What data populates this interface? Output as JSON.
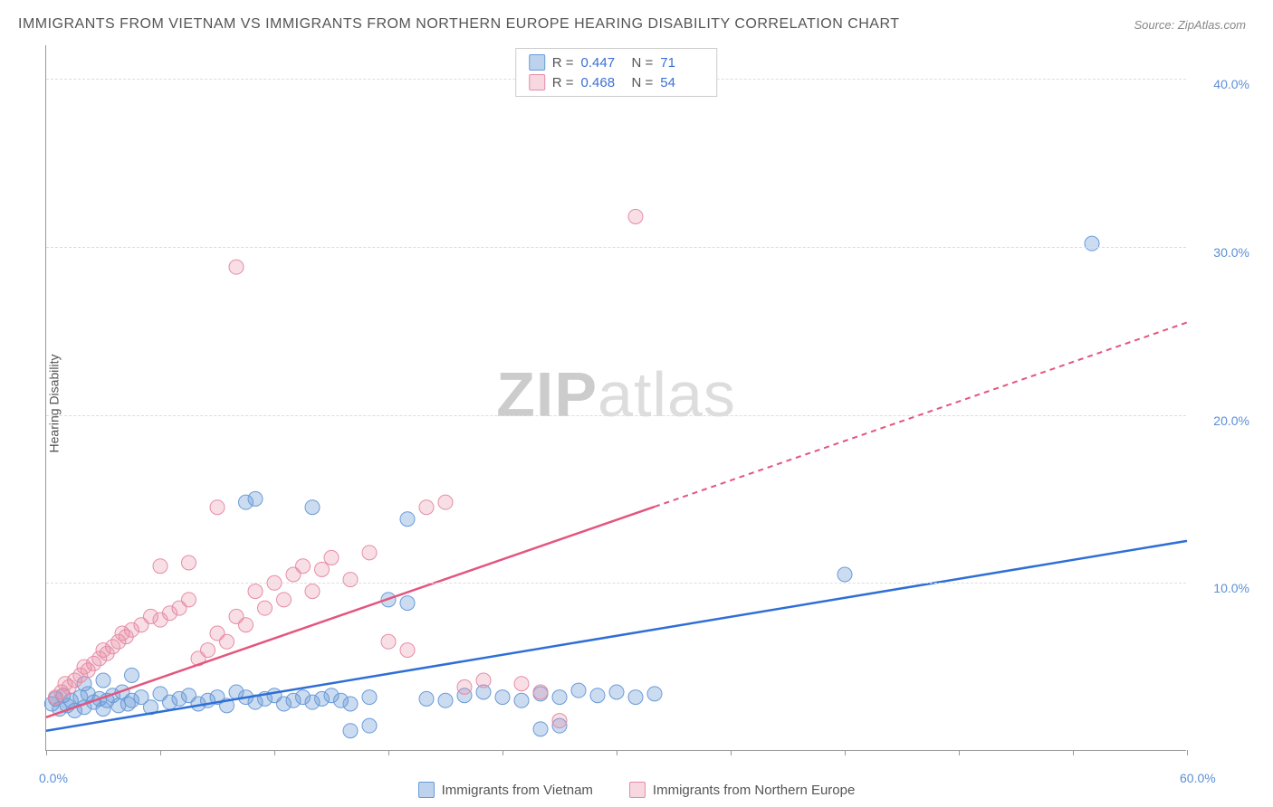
{
  "title": "IMMIGRANTS FROM VIETNAM VS IMMIGRANTS FROM NORTHERN EUROPE HEARING DISABILITY CORRELATION CHART",
  "source": "Source: ZipAtlas.com",
  "y_axis_label": "Hearing Disability",
  "watermark_a": "ZIP",
  "watermark_b": "atlas",
  "chart": {
    "type": "scatter",
    "x_range": [
      0,
      60
    ],
    "y_range": [
      0,
      42
    ],
    "y_ticks": [
      10,
      20,
      30,
      40
    ],
    "y_tick_labels": [
      "10.0%",
      "20.0%",
      "30.0%",
      "40.0%"
    ],
    "x_ticks": [
      0,
      6,
      12,
      18,
      24,
      30,
      36,
      42,
      48,
      54,
      60
    ],
    "x_tick_labels_show": {
      "0": "0.0%",
      "60": "60.0%"
    },
    "background_color": "#ffffff",
    "grid_color": "#dddddd",
    "series": [
      {
        "name": "Immigrants from Vietnam",
        "color_fill": "rgba(106,155,216,0.35)",
        "color_stroke": "#6a9bd8",
        "trend_color": "#2e6fd6",
        "trend_solid": true,
        "R": "0.447",
        "N": "71",
        "trend_y_at_x0": 1.2,
        "trend_y_at_x60": 12.5,
        "points": [
          [
            0.3,
            2.8
          ],
          [
            0.5,
            3.1
          ],
          [
            0.7,
            2.5
          ],
          [
            0.9,
            3.3
          ],
          [
            1.1,
            2.7
          ],
          [
            1.3,
            3.0
          ],
          [
            1.5,
            2.4
          ],
          [
            1.8,
            3.2
          ],
          [
            2.0,
            2.6
          ],
          [
            2.2,
            3.4
          ],
          [
            2.5,
            2.9
          ],
          [
            2.8,
            3.1
          ],
          [
            3.0,
            2.5
          ],
          [
            3.2,
            3.0
          ],
          [
            3.5,
            3.3
          ],
          [
            3.8,
            2.7
          ],
          [
            4.0,
            3.5
          ],
          [
            4.3,
            2.8
          ],
          [
            4.5,
            3.0
          ],
          [
            5.0,
            3.2
          ],
          [
            5.5,
            2.6
          ],
          [
            6.0,
            3.4
          ],
          [
            6.5,
            2.9
          ],
          [
            7.0,
            3.1
          ],
          [
            7.5,
            3.3
          ],
          [
            8.0,
            2.8
          ],
          [
            8.5,
            3.0
          ],
          [
            9.0,
            3.2
          ],
          [
            9.5,
            2.7
          ],
          [
            10.0,
            3.5
          ],
          [
            10.5,
            3.2
          ],
          [
            11.0,
            2.9
          ],
          [
            11.5,
            3.1
          ],
          [
            12.0,
            3.3
          ],
          [
            12.5,
            2.8
          ],
          [
            13.0,
            3.0
          ],
          [
            13.5,
            3.2
          ],
          [
            14.0,
            2.9
          ],
          [
            14.5,
            3.1
          ],
          [
            15.0,
            3.3
          ],
          [
            15.5,
            3.0
          ],
          [
            16.0,
            2.8
          ],
          [
            17.0,
            3.2
          ],
          [
            18.0,
            9.0
          ],
          [
            19.0,
            8.8
          ],
          [
            20.0,
            3.1
          ],
          [
            21.0,
            3.0
          ],
          [
            22.0,
            3.3
          ],
          [
            23.0,
            3.5
          ],
          [
            24.0,
            3.2
          ],
          [
            25.0,
            3.0
          ],
          [
            26.0,
            3.4
          ],
          [
            27.0,
            3.2
          ],
          [
            28.0,
            3.6
          ],
          [
            29.0,
            3.3
          ],
          [
            30.0,
            3.5
          ],
          [
            31.0,
            3.2
          ],
          [
            32.0,
            3.4
          ],
          [
            11.0,
            15.0
          ],
          [
            14.0,
            14.5
          ],
          [
            10.5,
            14.8
          ],
          [
            19.0,
            13.8
          ],
          [
            16.0,
            1.2
          ],
          [
            17.0,
            1.5
          ],
          [
            26.0,
            1.3
          ],
          [
            27.0,
            1.5
          ],
          [
            42.0,
            10.5
          ],
          [
            55.0,
            30.2
          ],
          [
            2.0,
            4.0
          ],
          [
            3.0,
            4.2
          ],
          [
            4.5,
            4.5
          ]
        ]
      },
      {
        "name": "Immigrants from Northern Europe",
        "color_fill": "rgba(231,140,165,0.28)",
        "color_stroke": "#e78ca5",
        "trend_color": "#e3567e",
        "trend_solid_until_x": 32,
        "R": "0.468",
        "N": "54",
        "trend_y_at_x0": 2.0,
        "trend_y_at_x60": 25.5,
        "points": [
          [
            0.5,
            3.2
          ],
          [
            0.8,
            3.5
          ],
          [
            1.0,
            4.0
          ],
          [
            1.2,
            3.8
          ],
          [
            1.5,
            4.2
          ],
          [
            1.8,
            4.5
          ],
          [
            2.0,
            5.0
          ],
          [
            2.2,
            4.8
          ],
          [
            2.5,
            5.2
          ],
          [
            2.8,
            5.5
          ],
          [
            3.0,
            6.0
          ],
          [
            3.2,
            5.8
          ],
          [
            3.5,
            6.2
          ],
          [
            3.8,
            6.5
          ],
          [
            4.0,
            7.0
          ],
          [
            4.2,
            6.8
          ],
          [
            4.5,
            7.2
          ],
          [
            5.0,
            7.5
          ],
          [
            5.5,
            8.0
          ],
          [
            6.0,
            7.8
          ],
          [
            6.5,
            8.2
          ],
          [
            7.0,
            8.5
          ],
          [
            7.5,
            9.0
          ],
          [
            8.0,
            5.5
          ],
          [
            8.5,
            6.0
          ],
          [
            9.0,
            7.0
          ],
          [
            9.5,
            6.5
          ],
          [
            10.0,
            8.0
          ],
          [
            10.5,
            7.5
          ],
          [
            11.0,
            9.5
          ],
          [
            11.5,
            8.5
          ],
          [
            12.0,
            10.0
          ],
          [
            12.5,
            9.0
          ],
          [
            13.0,
            10.5
          ],
          [
            13.5,
            11.0
          ],
          [
            14.0,
            9.5
          ],
          [
            14.5,
            10.8
          ],
          [
            15.0,
            11.5
          ],
          [
            16.0,
            10.2
          ],
          [
            17.0,
            11.8
          ],
          [
            18.0,
            6.5
          ],
          [
            19.0,
            6.0
          ],
          [
            20.0,
            14.5
          ],
          [
            21.0,
            14.8
          ],
          [
            9.0,
            14.5
          ],
          [
            10.0,
            28.8
          ],
          [
            25.0,
            4.0
          ],
          [
            26.0,
            3.5
          ],
          [
            27.0,
            1.8
          ],
          [
            22.0,
            3.8
          ],
          [
            23.0,
            4.2
          ],
          [
            31.0,
            31.8
          ],
          [
            6.0,
            11.0
          ],
          [
            7.5,
            11.2
          ]
        ]
      }
    ]
  },
  "legend_top": {
    "r_label": "R =",
    "n_label": "N ="
  },
  "legend_bottom": [
    {
      "name": "Immigrants from Vietnam",
      "class": "sq-blue"
    },
    {
      "name": "Immigrants from Northern Europe",
      "class": "sq-pink"
    }
  ]
}
